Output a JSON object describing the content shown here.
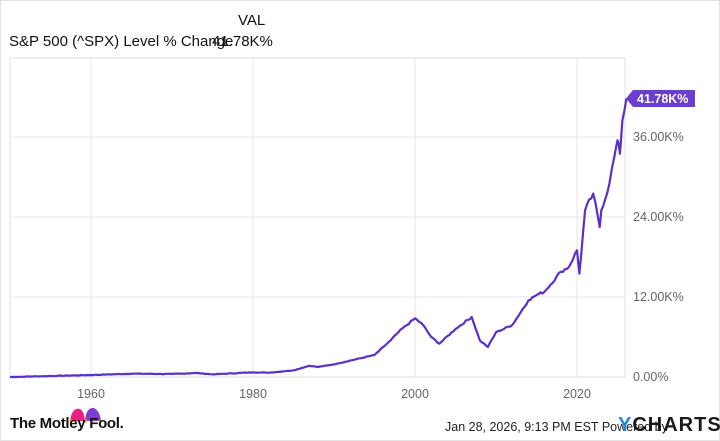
{
  "legend": {
    "column_header": "VAL",
    "series_name": "S&P 500 (^SPX) Level % Change",
    "series_value": "41.78K%"
  },
  "colors": {
    "line": "#5b2fc9",
    "badge": "#6a3fd0",
    "grid": "#e6e6e6",
    "axis_text": "#666666",
    "ycharts_y": "#1e88e5"
  },
  "axis": {
    "y_ticks": [
      "0.00%",
      "12.00K%",
      "24.00K%",
      "36.00K%"
    ],
    "x_ticks": [
      "1960",
      "1980",
      "2000",
      "2020"
    ],
    "current_badge": "41.78K%"
  },
  "footer": {
    "brand_left": "The Motley Fool.",
    "timestamp": "Jan 28, 2026, 9:13 PM EST",
    "powered_by": "Powered by",
    "brand_right_y": "Y",
    "brand_right_rest": "CHARTS"
  },
  "chart_data": {
    "type": "line",
    "title": "S&P 500 (^SPX) Level % Change",
    "xlabel": "",
    "ylabel": "% Change",
    "ylim": [
      0,
      42000
    ],
    "xlim": [
      1950,
      2026
    ],
    "y_tick_values": [
      0,
      12000,
      24000,
      36000
    ],
    "x_tick_values": [
      1960,
      1980,
      2000,
      2020
    ],
    "grid": true,
    "legend_position": "top-left",
    "series": [
      {
        "name": "S&P 500 (^SPX) Level % Change",
        "final_value_label": "41.78K%",
        "x": [
          1950,
          1955,
          1960,
          1965,
          1970,
          1973,
          1975,
          1980,
          1982,
          1985,
          1987,
          1988,
          1990,
          1995,
          1997,
          1998,
          2000,
          2001,
          2002,
          2003,
          2005,
          2007,
          2008,
          2009,
          2010,
          2012,
          2014,
          2015,
          2016,
          2018,
          2019,
          2020,
          2020.3,
          2021,
          2022,
          2022.8,
          2023,
          2024,
          2024.6,
          2025,
          2025.3,
          2025.6,
          2026.1
        ],
        "values": [
          0,
          150,
          300,
          500,
          450,
          600,
          400,
          700,
          650,
          1000,
          1700,
          1500,
          1900,
          3300,
          5500,
          6800,
          8800,
          7800,
          6000,
          5000,
          7200,
          9000,
          5500,
          4500,
          6700,
          7800,
          11500,
          12300,
          12800,
          15800,
          16500,
          19000,
          15500,
          25000,
          27500,
          22500,
          25000,
          29000,
          33000,
          35500,
          33500,
          38500,
          41780
        ]
      }
    ]
  }
}
